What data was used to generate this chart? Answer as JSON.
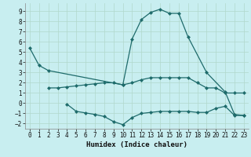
{
  "xlabel": "Humidex (Indice chaleur)",
  "background_color": "#c8eef0",
  "grid_color": "#b0d8cc",
  "line_color": "#1e6b6b",
  "xlim": [
    -0.5,
    23.5
  ],
  "ylim": [
    -2.5,
    9.8
  ],
  "xticks": [
    0,
    1,
    2,
    3,
    4,
    5,
    6,
    7,
    8,
    9,
    10,
    11,
    12,
    13,
    14,
    15,
    16,
    17,
    18,
    19,
    20,
    21,
    22,
    23
  ],
  "yticks": [
    -2,
    -1,
    0,
    1,
    2,
    3,
    4,
    5,
    6,
    7,
    8,
    9
  ],
  "line1_x": [
    0,
    1,
    2,
    10,
    11,
    12,
    13,
    14,
    15,
    16,
    17,
    19,
    21,
    22,
    23
  ],
  "line1_y": [
    5.4,
    3.7,
    3.2,
    1.8,
    6.3,
    8.2,
    8.9,
    9.2,
    8.8,
    8.8,
    6.5,
    3.0,
    1.1,
    -1.1,
    -1.2
  ],
  "line2_x": [
    2,
    3,
    4,
    5,
    6,
    7,
    8,
    9,
    10,
    11,
    12,
    13,
    14,
    15,
    16,
    17,
    18,
    19,
    20,
    21,
    22,
    23
  ],
  "line2_y": [
    1.5,
    1.5,
    1.6,
    1.7,
    1.8,
    1.9,
    2.0,
    2.0,
    1.8,
    2.0,
    2.3,
    2.5,
    2.5,
    2.5,
    2.5,
    2.5,
    2.0,
    1.5,
    1.5,
    1.0,
    1.0,
    1.0
  ],
  "line3_x": [
    4,
    5,
    6,
    7,
    8,
    9,
    10,
    11,
    12,
    13,
    14,
    15,
    16,
    17,
    18,
    19,
    20,
    21,
    22,
    23
  ],
  "line3_y": [
    -0.1,
    -0.8,
    -0.95,
    -1.1,
    -1.3,
    -1.8,
    -2.1,
    -1.4,
    -1.0,
    -0.9,
    -0.8,
    -0.8,
    -0.8,
    -0.8,
    -0.9,
    -0.9,
    -0.5,
    -0.3,
    -1.2,
    -1.2
  ],
  "markersize": 2.5,
  "linewidth": 0.9,
  "tick_fontsize": 5.5,
  "xlabel_fontsize": 6.5
}
